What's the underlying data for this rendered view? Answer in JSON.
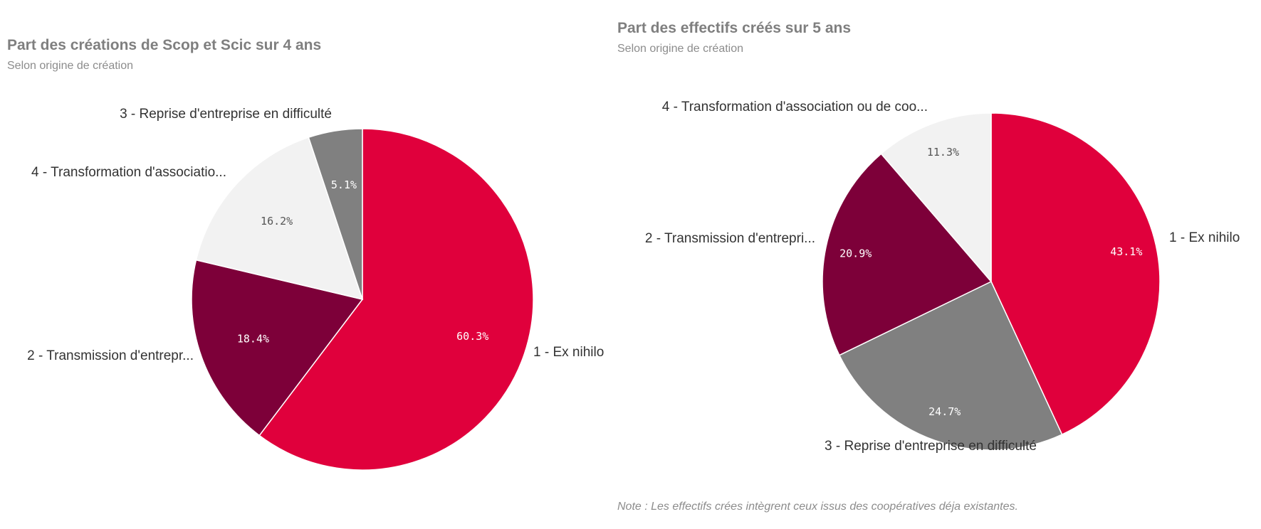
{
  "chart_data": [
    {
      "type": "pie",
      "title": "Part des créations de Scop et Scic sur 4 ans",
      "subtitle": "Selon origine de création",
      "slices": [
        {
          "label": "1 - Ex nihilo",
          "value": 60.3,
          "value_label": "60.3%",
          "color": "#e0003c"
        },
        {
          "label": "2 - Transmission d'entrepr...",
          "value": 18.4,
          "value_label": "18.4%",
          "color": "#7d0039"
        },
        {
          "label": "4 - Transformation d'associatio...",
          "value": 16.2,
          "value_label": "16.2%",
          "color": "#f2f2f2"
        },
        {
          "label": "3 - Reprise d'entreprise en difficulté",
          "value": 5.1,
          "value_label": "5.1%",
          "color": "#808080"
        }
      ]
    },
    {
      "type": "pie",
      "title": "Part des effectifs créés sur 5 ans",
      "subtitle": "Selon origine de création",
      "slices": [
        {
          "label": "1 - Ex nihilo",
          "value": 43.1,
          "value_label": "43.1%",
          "color": "#e0003c"
        },
        {
          "label": "3 - Reprise d'entreprise en difficulté",
          "value": 24.7,
          "value_label": "24.7%",
          "color": "#808080"
        },
        {
          "label": "2 - Transmission d'entrepri...",
          "value": 20.9,
          "value_label": "20.9%",
          "color": "#7d0039"
        },
        {
          "label": "4 - Transformation d'association ou de coo...",
          "value": 11.3,
          "value_label": "11.3%",
          "color": "#f2f2f2"
        }
      ]
    }
  ],
  "note": "Note : Les effectifs crées intègrent ceux issus des coopératives déja existantes."
}
